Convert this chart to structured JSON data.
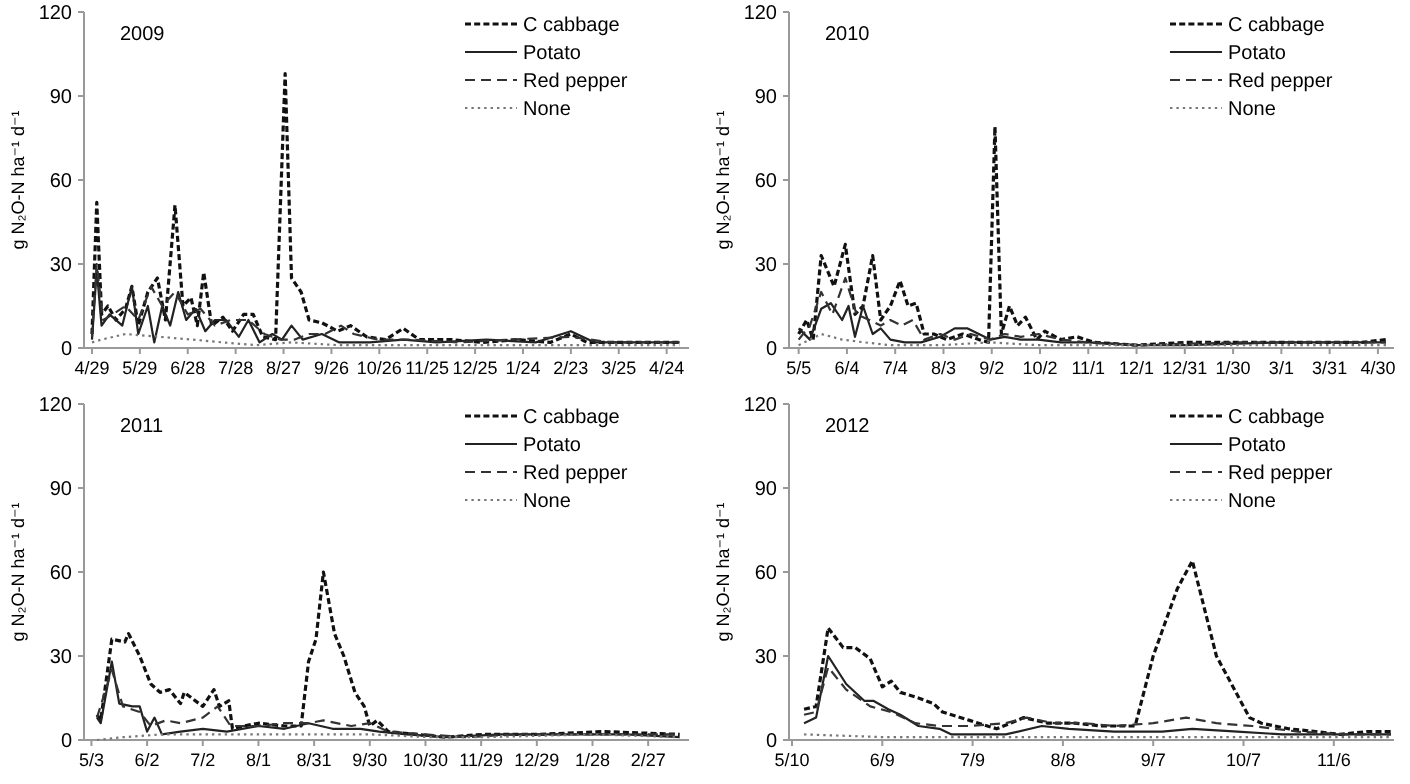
{
  "chart_data": [
    {
      "type": "line",
      "title": "2009",
      "ylabel": "g N₂O-N ha⁻¹ d⁻¹",
      "legend": "top right",
      "ylim": [
        0,
        120
      ],
      "yticks": [
        0,
        30,
        60,
        90,
        120
      ],
      "xlim": [
        "2009-04-24",
        "2010-05-08"
      ],
      "xticks": [
        {
          "value": "2009-04-29",
          "label": "4/29"
        },
        {
          "value": "2009-05-29",
          "label": "5/29"
        },
        {
          "value": "2009-06-28",
          "label": "6/28"
        },
        {
          "value": "2009-07-28",
          "label": "7/28"
        },
        {
          "value": "2009-08-27",
          "label": "8/27"
        },
        {
          "value": "2009-09-26",
          "label": "9/26"
        },
        {
          "value": "2009-10-26",
          "label": "10/26"
        },
        {
          "value": "2009-11-25",
          "label": "11/25"
        },
        {
          "value": "2009-12-25",
          "label": "12/25"
        },
        {
          "value": "2010-01-24",
          "label": "1/24"
        },
        {
          "value": "2010-02-23",
          "label": "2/23"
        },
        {
          "value": "2010-03-25",
          "label": "3/25"
        },
        {
          "value": "2010-04-24",
          "label": "4/24"
        }
      ],
      "series": [
        {
          "name": "C cabbage",
          "color": "#111111",
          "line_style": "dashed",
          "x": [
            "2009-04-29",
            "2009-05-02",
            "2009-05-05",
            "2009-05-09",
            "2009-05-14",
            "2009-05-20",
            "2009-05-24",
            "2009-05-28",
            "2009-06-03",
            "2009-06-09",
            "2009-06-14",
            "2009-06-20",
            "2009-06-25",
            "2009-06-30",
            "2009-07-04",
            "2009-07-08",
            "2009-07-13",
            "2009-07-20",
            "2009-07-26",
            "2009-08-02",
            "2009-08-08",
            "2009-08-14",
            "2009-08-22",
            "2009-08-28",
            "2009-09-01",
            "2009-09-07",
            "2009-09-12",
            "2009-09-20",
            "2009-09-30",
            "2009-10-08",
            "2009-10-18",
            "2009-10-30",
            "2009-11-10",
            "2009-11-20",
            "2009-12-10",
            "2009-12-30",
            "2010-01-20",
            "2010-02-10",
            "2010-02-23",
            "2010-03-05",
            "2010-03-25",
            "2010-04-15",
            "2010-05-02"
          ],
          "values": [
            5,
            52,
            12,
            15,
            10,
            14,
            22,
            8,
            20,
            25,
            10,
            51,
            15,
            18,
            8,
            27,
            8,
            11,
            6,
            12,
            12,
            4,
            3,
            98,
            25,
            20,
            10,
            9,
            6,
            8,
            4,
            3,
            7,
            3,
            3,
            2,
            3,
            2,
            5,
            2,
            2,
            2,
            2
          ]
        },
        {
          "name": "Potato",
          "color": "#222222",
          "line_style": "solid",
          "x": [
            "2009-04-29",
            "2009-05-02",
            "2009-05-05",
            "2009-05-10",
            "2009-05-18",
            "2009-05-24",
            "2009-05-28",
            "2009-06-03",
            "2009-06-07",
            "2009-06-12",
            "2009-06-17",
            "2009-06-22",
            "2009-06-27",
            "2009-07-03",
            "2009-07-09",
            "2009-07-15",
            "2009-07-22",
            "2009-07-30",
            "2009-08-05",
            "2009-08-12",
            "2009-08-20",
            "2009-08-26",
            "2009-09-01",
            "2009-09-08",
            "2009-09-20",
            "2009-10-01",
            "2009-10-20",
            "2009-11-10",
            "2009-12-01",
            "2010-01-01",
            "2010-02-01",
            "2010-02-23",
            "2010-03-10",
            "2010-04-01",
            "2010-05-02"
          ],
          "values": [
            3,
            28,
            8,
            12,
            8,
            22,
            5,
            15,
            2,
            15,
            8,
            20,
            10,
            14,
            6,
            10,
            10,
            4,
            10,
            2,
            5,
            3,
            8,
            3,
            5,
            2,
            2,
            3,
            2,
            3,
            2,
            6,
            2,
            2,
            2
          ]
        },
        {
          "name": "Red pepper",
          "color": "#333333",
          "line_style": "dashed",
          "x": [
            "2009-04-29",
            "2009-05-02",
            "2009-05-06",
            "2009-05-12",
            "2009-05-20",
            "2009-05-28",
            "2009-06-05",
            "2009-06-12",
            "2009-06-20",
            "2009-06-28",
            "2009-07-06",
            "2009-07-15",
            "2009-07-25",
            "2009-08-05",
            "2009-08-15",
            "2009-08-25",
            "2009-09-03",
            "2009-09-12",
            "2009-09-22",
            "2009-10-02",
            "2009-10-10",
            "2009-10-25",
            "2009-11-15",
            "2009-12-15",
            "2010-01-15",
            "2010-02-23",
            "2010-03-20",
            "2010-05-02"
          ],
          "values": [
            4,
            30,
            10,
            12,
            15,
            10,
            22,
            15,
            20,
            12,
            14,
            8,
            10,
            10,
            5,
            3,
            3,
            5,
            5,
            8,
            5,
            3,
            3,
            2,
            3,
            4,
            2,
            2
          ]
        },
        {
          "name": "None",
          "color": "#777777",
          "line_style": "dotted",
          "x": [
            "2009-04-29",
            "2009-05-05",
            "2009-05-20",
            "2009-06-10",
            "2009-07-01",
            "2009-07-20",
            "2009-08-10",
            "2009-09-01",
            "2009-10-01",
            "2009-11-01",
            "2010-01-01",
            "2010-03-01",
            "2010-05-02"
          ],
          "values": [
            2,
            3,
            5,
            4,
            3,
            2,
            1,
            2,
            1,
            1,
            1,
            1,
            1
          ]
        }
      ]
    },
    {
      "type": "line",
      "title": "2010",
      "ylabel": "g N₂O-N ha⁻¹ d⁻¹",
      "legend": "top right",
      "ylim": [
        0,
        120
      ],
      "yticks": [
        0,
        30,
        60,
        90,
        120
      ],
      "xlim": [
        "2010-04-29",
        "2011-05-10"
      ],
      "xticks": [
        {
          "value": "2010-05-05",
          "label": "5/5"
        },
        {
          "value": "2010-06-04",
          "label": "6/4"
        },
        {
          "value": "2010-07-04",
          "label": "7/4"
        },
        {
          "value": "2010-08-03",
          "label": "8/3"
        },
        {
          "value": "2010-09-02",
          "label": "9/2"
        },
        {
          "value": "2010-10-02",
          "label": "10/2"
        },
        {
          "value": "2010-11-01",
          "label": "11/1"
        },
        {
          "value": "2010-12-01",
          "label": "12/1"
        },
        {
          "value": "2010-12-31",
          "label": "12/31"
        },
        {
          "value": "2011-01-30",
          "label": "1/30"
        },
        {
          "value": "2011-03-01",
          "label": "3/1"
        },
        {
          "value": "2011-03-31",
          "label": "3/31"
        },
        {
          "value": "2011-04-30",
          "label": "4/30"
        }
      ],
      "series": [
        {
          "name": "C cabbage",
          "color": "#111111",
          "line_style": "dashed",
          "x": [
            "2010-05-05",
            "2010-05-10",
            "2010-05-14",
            "2010-05-19",
            "2010-05-27",
            "2010-06-03",
            "2010-06-09",
            "2010-06-14",
            "2010-06-20",
            "2010-06-25",
            "2010-07-01",
            "2010-07-07",
            "2010-07-12",
            "2010-07-17",
            "2010-07-22",
            "2010-07-28",
            "2010-08-05",
            "2010-08-15",
            "2010-08-25",
            "2010-08-31",
            "2010-09-04",
            "2010-09-08",
            "2010-09-13",
            "2010-09-18",
            "2010-09-23",
            "2010-09-30",
            "2010-10-05",
            "2010-10-15",
            "2010-10-25",
            "2010-11-05",
            "2010-12-01",
            "2011-01-01",
            "2011-02-01",
            "2011-03-01",
            "2011-04-01",
            "2011-04-20",
            "2011-05-05"
          ],
          "values": [
            5,
            10,
            3,
            33,
            22,
            37,
            12,
            15,
            33,
            10,
            15,
            24,
            15,
            16,
            5,
            5,
            3,
            5,
            3,
            2,
            79,
            5,
            15,
            8,
            11,
            3,
            6,
            3,
            4,
            2,
            1,
            2,
            2,
            2,
            2,
            2,
            3
          ]
        },
        {
          "name": "Potato",
          "color": "#222222",
          "line_style": "solid",
          "x": [
            "2010-05-05",
            "2010-05-12",
            "2010-05-19",
            "2010-05-25",
            "2010-06-01",
            "2010-06-05",
            "2010-06-09",
            "2010-06-14",
            "2010-06-20",
            "2010-06-25",
            "2010-07-01",
            "2010-07-10",
            "2010-07-20",
            "2010-08-01",
            "2010-08-10",
            "2010-08-18",
            "2010-08-25",
            "2010-09-01",
            "2010-09-10",
            "2010-09-20",
            "2010-10-01",
            "2010-10-15",
            "2010-11-01",
            "2010-12-01",
            "2011-01-01",
            "2011-03-01",
            "2011-04-10",
            "2011-05-05"
          ],
          "values": [
            7,
            3,
            14,
            16,
            10,
            15,
            4,
            15,
            5,
            7,
            3,
            2,
            2,
            4,
            7,
            7,
            5,
            3,
            4,
            3,
            3,
            2,
            2,
            1,
            1,
            2,
            2,
            2
          ]
        },
        {
          "name": "Red pepper",
          "color": "#333333",
          "line_style": "dashed",
          "x": [
            "2010-05-05",
            "2010-05-12",
            "2010-05-19",
            "2010-05-26",
            "2010-06-03",
            "2010-06-10",
            "2010-06-18",
            "2010-06-25",
            "2010-07-01",
            "2010-07-08",
            "2010-07-15",
            "2010-07-22",
            "2010-08-01",
            "2010-08-10",
            "2010-08-20",
            "2010-09-01",
            "2010-09-10",
            "2010-09-20",
            "2010-10-01",
            "2010-10-15",
            "2010-11-01",
            "2010-12-01",
            "2011-02-01",
            "2011-04-01",
            "2011-05-05"
          ],
          "values": [
            3,
            8,
            20,
            12,
            25,
            12,
            10,
            8,
            10,
            8,
            10,
            3,
            5,
            3,
            5,
            3,
            5,
            4,
            5,
            3,
            2,
            1,
            2,
            2,
            2
          ]
        },
        {
          "name": "None",
          "color": "#777777",
          "line_style": "dotted",
          "x": [
            "2010-05-05",
            "2010-05-19",
            "2010-06-01",
            "2010-06-15",
            "2010-07-01",
            "2010-08-01",
            "2010-09-01",
            "2010-10-01",
            "2010-12-01",
            "2011-03-01",
            "2011-05-05"
          ],
          "values": [
            1,
            5,
            3,
            2,
            1,
            1,
            2,
            1,
            1,
            1,
            1
          ]
        }
      ]
    },
    {
      "type": "line",
      "title": "2011",
      "ylabel": "g N₂O-N ha⁻¹ d⁻¹",
      "legend": "top right",
      "ylim": [
        0,
        120
      ],
      "yticks": [
        0,
        30,
        60,
        90,
        120
      ],
      "xlim": [
        "2011-04-29",
        "2012-03-20"
      ],
      "xticks": [
        {
          "value": "2011-05-03",
          "label": "5/3"
        },
        {
          "value": "2011-06-02",
          "label": "6/2"
        },
        {
          "value": "2011-07-02",
          "label": "7/2"
        },
        {
          "value": "2011-08-01",
          "label": "8/1"
        },
        {
          "value": "2011-08-31",
          "label": "8/31"
        },
        {
          "value": "2011-09-30",
          "label": "9/30"
        },
        {
          "value": "2011-10-30",
          "label": "10/30"
        },
        {
          "value": "2011-11-29",
          "label": "11/29"
        },
        {
          "value": "2011-12-29",
          "label": "12/29"
        },
        {
          "value": "2012-01-28",
          "label": "1/28"
        },
        {
          "value": "2012-02-27",
          "label": "2/27"
        }
      ],
      "series": [
        {
          "name": "C cabbage",
          "color": "#111111",
          "line_style": "dashed",
          "x": [
            "2011-05-06",
            "2011-05-08",
            "2011-05-14",
            "2011-05-21",
            "2011-05-23",
            "2011-05-29",
            "2011-06-04",
            "2011-06-09",
            "2011-06-14",
            "2011-06-20",
            "2011-06-22",
            "2011-07-02",
            "2011-07-08",
            "2011-07-11",
            "2011-07-16",
            "2011-07-18",
            "2011-07-24",
            "2011-08-01",
            "2011-08-15",
            "2011-08-24",
            "2011-08-28",
            "2011-09-01",
            "2011-09-05",
            "2011-09-11",
            "2011-09-16",
            "2011-09-22",
            "2011-09-27",
            "2011-09-30",
            "2011-10-04",
            "2011-10-10",
            "2011-10-25",
            "2011-11-10",
            "2011-11-30",
            "2011-12-30",
            "2012-02-03",
            "2012-03-15"
          ],
          "values": [
            9,
            7,
            36,
            35,
            38,
            30,
            20,
            17,
            18,
            13,
            17,
            12,
            18,
            12,
            14,
            4,
            5,
            6,
            5,
            5,
            28,
            36,
            60,
            38,
            30,
            17,
            12,
            5,
            7,
            3,
            2,
            1,
            2,
            2,
            3,
            2
          ]
        },
        {
          "name": "Potato",
          "color": "#222222",
          "line_style": "solid",
          "x": [
            "2011-05-06",
            "2011-05-08",
            "2011-05-14",
            "2011-05-18",
            "2011-05-25",
            "2011-05-29",
            "2011-06-02",
            "2011-06-06",
            "2011-06-10",
            "2011-06-20",
            "2011-07-02",
            "2011-07-15",
            "2011-08-01",
            "2011-08-15",
            "2011-08-28",
            "2011-09-10",
            "2011-09-25",
            "2011-10-05",
            "2011-10-20",
            "2011-11-10",
            "2011-12-10",
            "2012-01-15",
            "2012-02-15",
            "2012-03-15"
          ],
          "values": [
            8,
            6,
            28,
            13,
            12,
            12,
            3,
            8,
            2,
            3,
            4,
            3,
            5,
            4,
            6,
            4,
            4,
            3,
            2,
            1,
            2,
            2,
            2,
            1
          ]
        },
        {
          "name": "Red pepper",
          "color": "#333333",
          "line_style": "dashed",
          "x": [
            "2011-05-06",
            "2011-05-14",
            "2011-05-20",
            "2011-05-29",
            "2011-06-04",
            "2011-06-12",
            "2011-06-20",
            "2011-07-02",
            "2011-07-10",
            "2011-07-17",
            "2011-08-01",
            "2011-08-15",
            "2011-08-28",
            "2011-09-05",
            "2011-09-20",
            "2011-09-30",
            "2011-10-10",
            "2011-10-30",
            "2011-11-20",
            "2011-12-20",
            "2012-02-01",
            "2012-03-15"
          ],
          "values": [
            8,
            25,
            12,
            10,
            5,
            7,
            6,
            8,
            12,
            5,
            5,
            6,
            6,
            7,
            5,
            6,
            3,
            2,
            1,
            2,
            2,
            2
          ]
        },
        {
          "name": "None",
          "color": "#777777",
          "line_style": "dotted",
          "x": [
            "2011-05-06",
            "2011-05-20",
            "2011-06-10",
            "2011-07-02",
            "2011-08-01",
            "2011-09-01",
            "2011-10-01",
            "2011-11-01",
            "2011-12-01",
            "2012-01-28",
            "2012-03-15"
          ],
          "values": [
            0,
            1,
            2,
            2,
            2,
            2,
            2,
            1,
            1,
            2,
            1
          ]
        }
      ]
    },
    {
      "type": "line",
      "title": "2012",
      "ylabel": "g N₂O-N ha⁻¹ d⁻¹",
      "legend": "top right",
      "ylim": [
        0,
        120
      ],
      "yticks": [
        0,
        30,
        60,
        90,
        120
      ],
      "xlim": [
        "2012-05-09",
        "2012-11-26"
      ],
      "xticks": [
        {
          "value": "2012-05-10",
          "label": "5/10"
        },
        {
          "value": "2012-06-09",
          "label": "6/9"
        },
        {
          "value": "2012-07-09",
          "label": "7/9"
        },
        {
          "value": "2012-08-08",
          "label": "8/8"
        },
        {
          "value": "2012-09-07",
          "label": "9/7"
        },
        {
          "value": "2012-10-07",
          "label": "10/7"
        },
        {
          "value": "2012-11-06",
          "label": "11/6"
        }
      ],
      "series": [
        {
          "name": "C cabbage",
          "color": "#111111",
          "line_style": "dashed",
          "x": [
            "2012-05-14",
            "2012-05-18",
            "2012-05-22",
            "2012-05-27",
            "2012-05-31",
            "2012-06-05",
            "2012-06-09",
            "2012-06-12",
            "2012-06-15",
            "2012-06-21",
            "2012-06-26",
            "2012-06-29",
            "2012-07-08",
            "2012-07-17",
            "2012-07-26",
            "2012-08-03",
            "2012-08-12",
            "2012-08-21",
            "2012-09-01",
            "2012-09-07",
            "2012-09-15",
            "2012-09-20",
            "2012-09-28",
            "2012-10-03",
            "2012-10-09",
            "2012-10-13",
            "2012-10-22",
            "2012-10-31",
            "2012-11-08",
            "2012-11-17",
            "2012-11-25"
          ],
          "values": [
            11,
            12,
            40,
            33,
            33,
            29,
            19,
            21,
            17,
            15,
            13,
            10,
            7,
            4,
            8,
            6,
            6,
            5,
            5,
            30,
            54,
            64,
            30,
            20,
            8,
            6,
            4,
            3,
            2,
            3,
            3
          ]
        },
        {
          "name": "Potato",
          "color": "#222222",
          "line_style": "solid",
          "x": [
            "2012-05-14",
            "2012-05-18",
            "2012-05-22",
            "2012-05-28",
            "2012-06-03",
            "2012-06-06",
            "2012-06-11",
            "2012-06-15",
            "2012-06-21",
            "2012-06-28",
            "2012-07-02",
            "2012-07-10",
            "2012-07-20",
            "2012-08-01",
            "2012-08-10",
            "2012-08-25",
            "2012-09-10",
            "2012-09-20",
            "2012-10-05",
            "2012-10-20",
            "2012-11-10",
            "2012-11-25"
          ],
          "values": [
            6,
            8,
            30,
            20,
            14,
            14,
            11,
            9,
            5,
            4,
            2,
            2,
            2,
            5,
            4,
            3,
            3,
            4,
            3,
            2,
            2,
            2
          ]
        },
        {
          "name": "Red pepper",
          "color": "#333333",
          "line_style": "dashed",
          "x": [
            "2012-05-14",
            "2012-05-18",
            "2012-05-22",
            "2012-05-28",
            "2012-06-05",
            "2012-06-12",
            "2012-06-20",
            "2012-06-28",
            "2012-07-08",
            "2012-07-20",
            "2012-07-27",
            "2012-08-05",
            "2012-08-15",
            "2012-08-25",
            "2012-09-07",
            "2012-09-18",
            "2012-09-28",
            "2012-10-10",
            "2012-10-25",
            "2012-11-10",
            "2012-11-25"
          ],
          "values": [
            9,
            10,
            26,
            18,
            12,
            10,
            6,
            5,
            5,
            6,
            8,
            6,
            6,
            5,
            6,
            8,
            6,
            5,
            3,
            2,
            2
          ]
        },
        {
          "name": "None",
          "color": "#777777",
          "line_style": "dotted",
          "x": [
            "2012-05-14",
            "2012-06-10",
            "2012-07-10",
            "2012-08-10",
            "2012-09-10",
            "2012-10-10",
            "2012-11-25"
          ],
          "values": [
            2,
            1,
            1,
            1,
            1,
            1,
            1
          ]
        }
      ]
    }
  ]
}
